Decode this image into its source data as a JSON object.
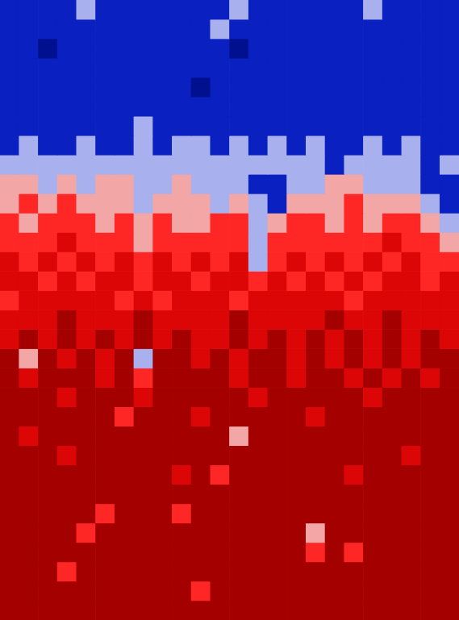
{
  "chart_data": {
    "type": "heatmap",
    "grid": false,
    "tick_labels": false,
    "colors": [
      "#00108e",
      "#0a20c0",
      "#a9b0ee",
      "#f2a6a6",
      "#ff2626",
      "#dc0606",
      "#a40000"
    ],
    "cells": [
      [
        1,
        1,
        1,
        1,
        2,
        1,
        1,
        1,
        1,
        1,
        1,
        1,
        2,
        1,
        1,
        1,
        1,
        1,
        1,
        2,
        1,
        1,
        1,
        1
      ],
      [
        1,
        1,
        1,
        1,
        1,
        1,
        1,
        1,
        1,
        1,
        1,
        2,
        1,
        1,
        1,
        1,
        1,
        1,
        1,
        1,
        1,
        1,
        1,
        1
      ],
      [
        1,
        1,
        0,
        1,
        1,
        1,
        1,
        1,
        1,
        1,
        1,
        1,
        0,
        1,
        1,
        1,
        1,
        1,
        1,
        1,
        1,
        1,
        1,
        1
      ],
      [
        1,
        1,
        1,
        1,
        1,
        1,
        1,
        1,
        1,
        1,
        1,
        1,
        1,
        1,
        1,
        1,
        1,
        1,
        1,
        1,
        1,
        1,
        1,
        1
      ],
      [
        1,
        1,
        1,
        1,
        1,
        1,
        1,
        1,
        1,
        1,
        0,
        1,
        1,
        1,
        1,
        1,
        1,
        1,
        1,
        1,
        1,
        1,
        1,
        1
      ],
      [
        1,
        1,
        1,
        1,
        1,
        1,
        1,
        1,
        1,
        1,
        1,
        1,
        1,
        1,
        1,
        1,
        1,
        1,
        1,
        1,
        1,
        1,
        1,
        1
      ],
      [
        1,
        1,
        1,
        1,
        1,
        1,
        1,
        2,
        1,
        1,
        1,
        1,
        1,
        1,
        1,
        1,
        1,
        1,
        1,
        1,
        1,
        1,
        1,
        1
      ],
      [
        1,
        2,
        1,
        1,
        2,
        1,
        1,
        2,
        1,
        2,
        2,
        1,
        2,
        1,
        2,
        1,
        2,
        1,
        1,
        2,
        1,
        2,
        1,
        1
      ],
      [
        2,
        2,
        2,
        2,
        2,
        2,
        2,
        2,
        2,
        2,
        2,
        2,
        2,
        2,
        2,
        2,
        2,
        1,
        2,
        2,
        2,
        2,
        1,
        2
      ],
      [
        3,
        3,
        2,
        3,
        2,
        3,
        3,
        2,
        2,
        3,
        2,
        2,
        2,
        1,
        1,
        2,
        2,
        3,
        3,
        2,
        2,
        2,
        1,
        1
      ],
      [
        3,
        4,
        3,
        4,
        3,
        3,
        3,
        2,
        3,
        3,
        3,
        2,
        3,
        2,
        1,
        3,
        3,
        3,
        4,
        3,
        3,
        3,
        2,
        1
      ],
      [
        4,
        3,
        4,
        4,
        4,
        3,
        4,
        3,
        4,
        3,
        3,
        4,
        4,
        2,
        3,
        4,
        4,
        3,
        4,
        3,
        4,
        4,
        3,
        2
      ],
      [
        4,
        4,
        4,
        5,
        4,
        4,
        4,
        3,
        4,
        4,
        4,
        4,
        4,
        2,
        4,
        4,
        4,
        4,
        4,
        4,
        5,
        4,
        4,
        3
      ],
      [
        5,
        4,
        5,
        4,
        5,
        4,
        5,
        4,
        5,
        4,
        5,
        4,
        5,
        2,
        4,
        5,
        4,
        5,
        4,
        5,
        4,
        5,
        4,
        4
      ],
      [
        5,
        5,
        4,
        5,
        4,
        5,
        5,
        4,
        5,
        5,
        4,
        5,
        5,
        4,
        5,
        4,
        5,
        4,
        5,
        4,
        5,
        5,
        4,
        5
      ],
      [
        4,
        5,
        5,
        5,
        5,
        5,
        4,
        5,
        4,
        5,
        5,
        5,
        4,
        5,
        5,
        5,
        5,
        5,
        4,
        5,
        5,
        5,
        5,
        5
      ],
      [
        5,
        5,
        5,
        6,
        5,
        5,
        5,
        6,
        5,
        5,
        5,
        5,
        6,
        5,
        5,
        5,
        5,
        6,
        5,
        5,
        6,
        5,
        5,
        5
      ],
      [
        5,
        6,
        5,
        6,
        5,
        6,
        5,
        6,
        5,
        6,
        5,
        5,
        6,
        5,
        6,
        5,
        6,
        5,
        6,
        5,
        6,
        5,
        6,
        5
      ],
      [
        6,
        3,
        6,
        5,
        6,
        5,
        6,
        2,
        6,
        6,
        5,
        6,
        5,
        6,
        6,
        5,
        6,
        5,
        6,
        5,
        6,
        5,
        6,
        6
      ],
      [
        6,
        5,
        6,
        6,
        6,
        5,
        6,
        4,
        6,
        6,
        6,
        6,
        5,
        6,
        6,
        5,
        6,
        6,
        5,
        6,
        5,
        6,
        5,
        6
      ],
      [
        6,
        6,
        6,
        5,
        6,
        6,
        6,
        5,
        6,
        6,
        6,
        6,
        6,
        5,
        6,
        6,
        6,
        6,
        6,
        5,
        6,
        6,
        6,
        6
      ],
      [
        6,
        6,
        6,
        6,
        6,
        6,
        4,
        6,
        6,
        6,
        5,
        6,
        6,
        6,
        6,
        6,
        5,
        6,
        6,
        6,
        6,
        6,
        6,
        6
      ],
      [
        6,
        5,
        6,
        6,
        6,
        6,
        6,
        6,
        6,
        6,
        6,
        6,
        3,
        6,
        6,
        6,
        6,
        6,
        6,
        6,
        6,
        6,
        6,
        6
      ],
      [
        6,
        6,
        6,
        5,
        6,
        6,
        6,
        6,
        6,
        6,
        6,
        6,
        6,
        6,
        6,
        6,
        6,
        6,
        6,
        6,
        6,
        5,
        6,
        6
      ],
      [
        6,
        6,
        6,
        6,
        6,
        6,
        6,
        6,
        6,
        5,
        6,
        4,
        6,
        6,
        6,
        6,
        6,
        6,
        5,
        6,
        6,
        6,
        6,
        6
      ],
      [
        6,
        6,
        6,
        6,
        6,
        6,
        6,
        6,
        6,
        6,
        6,
        6,
        6,
        6,
        6,
        6,
        6,
        6,
        6,
        6,
        6,
        6,
        6,
        6
      ],
      [
        6,
        6,
        6,
        6,
        6,
        4,
        6,
        6,
        6,
        4,
        6,
        6,
        6,
        6,
        6,
        6,
        6,
        6,
        6,
        6,
        6,
        6,
        6,
        6
      ],
      [
        6,
        6,
        6,
        6,
        4,
        6,
        6,
        6,
        6,
        6,
        6,
        6,
        6,
        6,
        6,
        6,
        3,
        6,
        6,
        6,
        6,
        6,
        6,
        6
      ],
      [
        6,
        6,
        6,
        6,
        6,
        6,
        6,
        6,
        6,
        6,
        6,
        6,
        6,
        6,
        6,
        6,
        4,
        6,
        4,
        6,
        6,
        6,
        6,
        6
      ],
      [
        6,
        6,
        6,
        4,
        6,
        6,
        6,
        6,
        6,
        6,
        6,
        6,
        6,
        6,
        6,
        6,
        6,
        6,
        6,
        6,
        6,
        6,
        6,
        6
      ],
      [
        6,
        6,
        6,
        6,
        6,
        6,
        6,
        6,
        6,
        6,
        4,
        6,
        6,
        6,
        6,
        6,
        6,
        6,
        6,
        6,
        6,
        6,
        6,
        6
      ],
      [
        6,
        6,
        6,
        6,
        6,
        6,
        6,
        6,
        6,
        6,
        6,
        6,
        6,
        6,
        6,
        6,
        6,
        6,
        6,
        6,
        6,
        6,
        6,
        6
      ]
    ]
  }
}
